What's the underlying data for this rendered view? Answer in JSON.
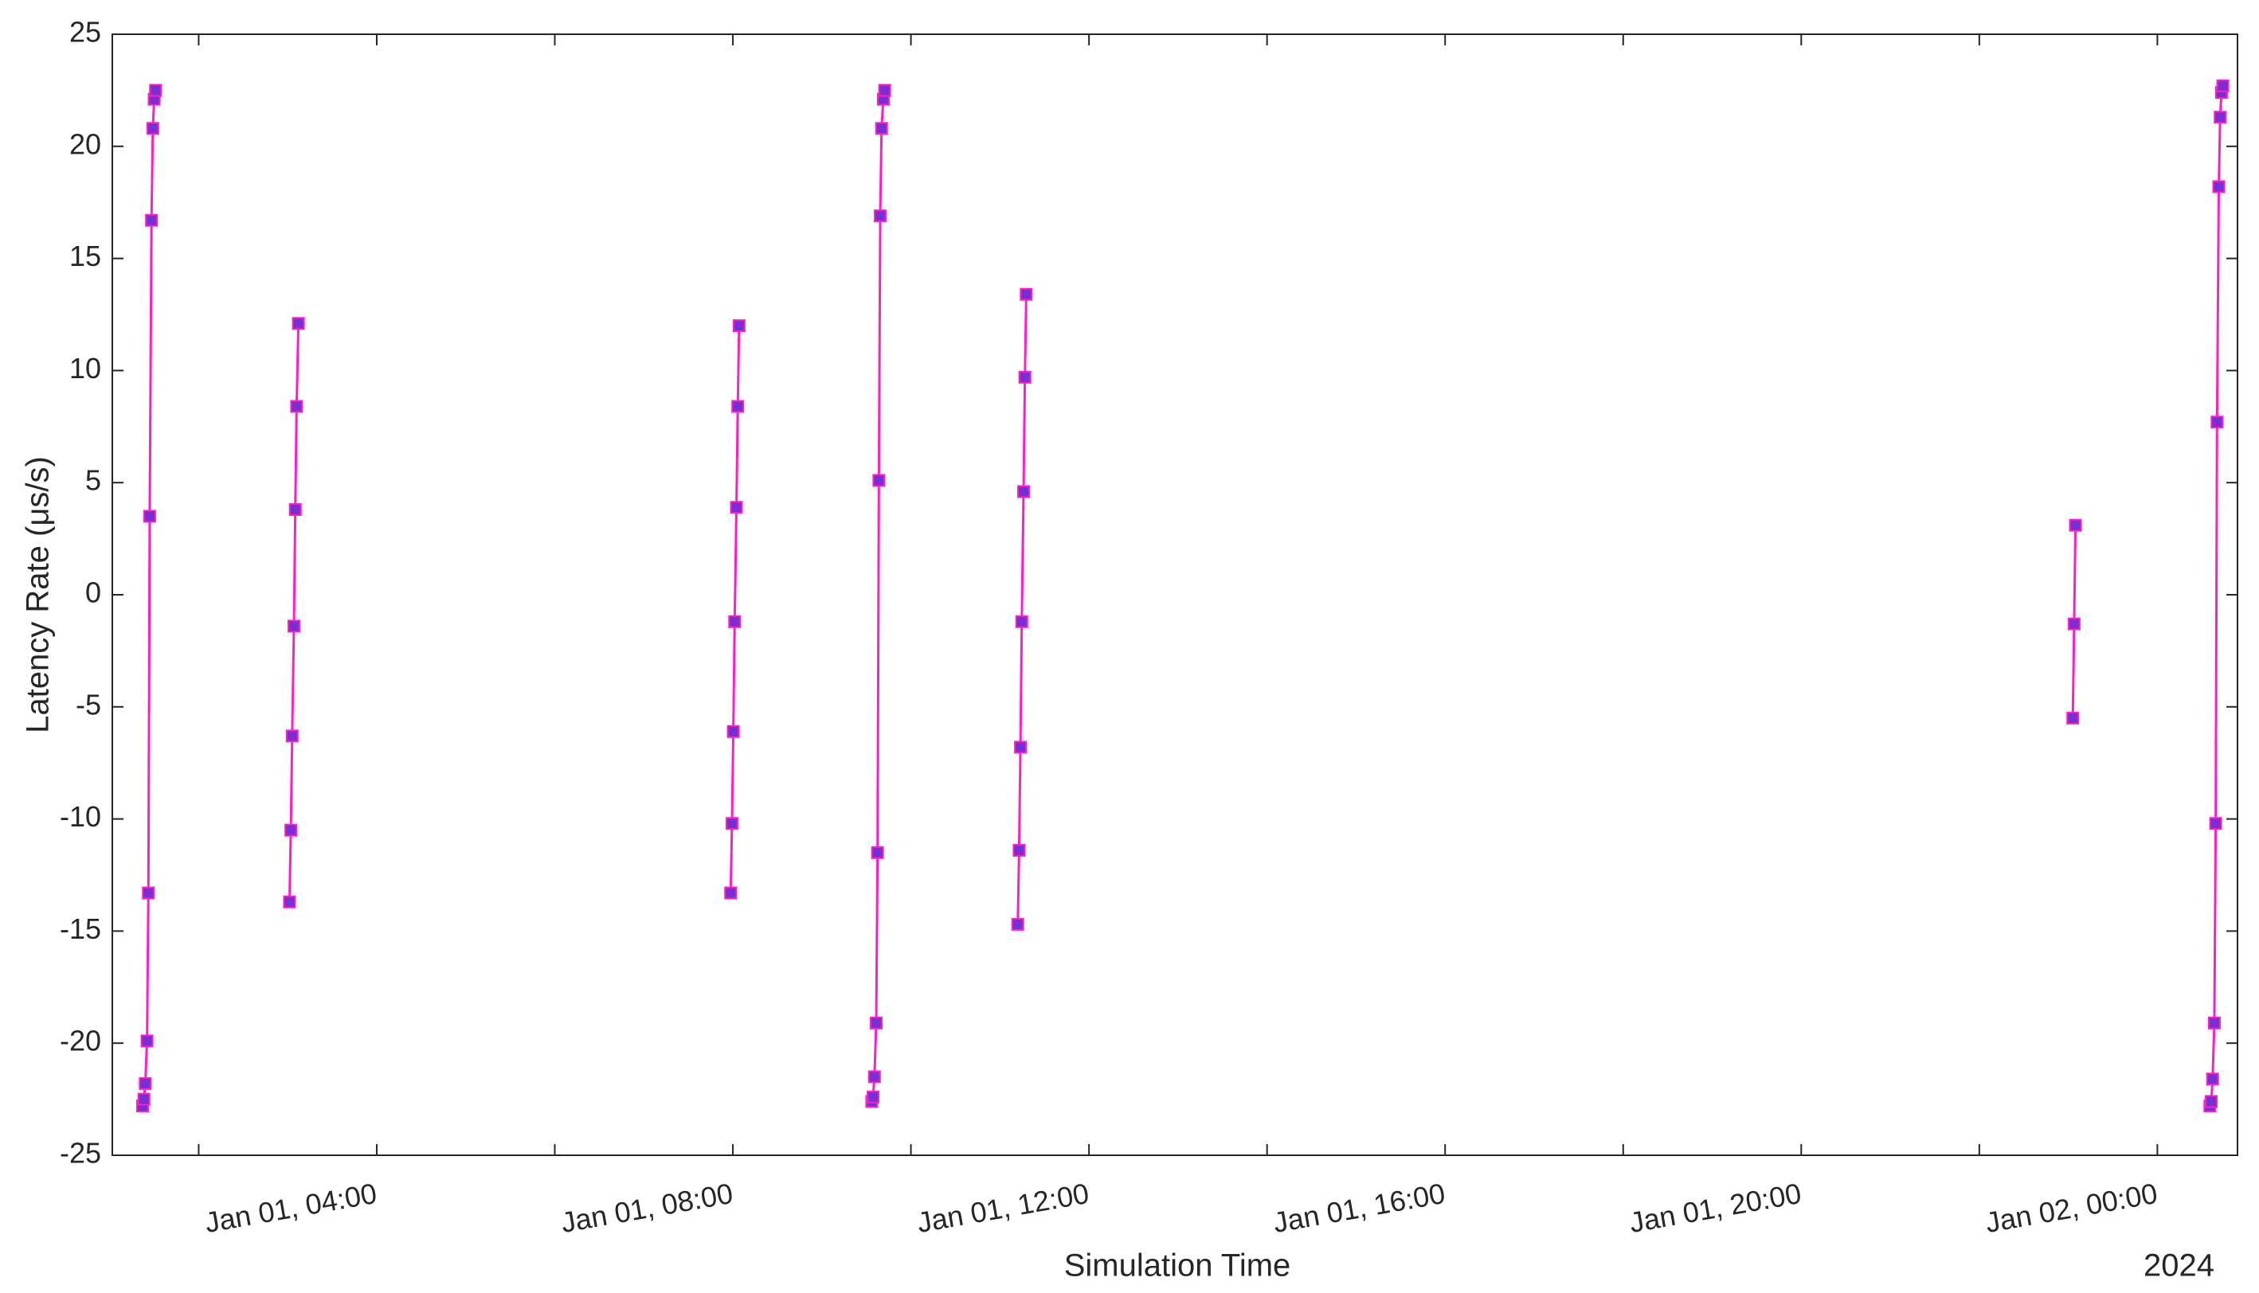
{
  "chart_data": {
    "type": "line",
    "xlabel": "Simulation Time",
    "ylabel": "Latency Rate (μs/s)",
    "x_secondary_label": "2024",
    "xlim": [
      1.03,
      24.9
    ],
    "xticks": [
      {
        "value": 4,
        "label": "Jan 01, 04:00"
      },
      {
        "value": 8,
        "label": "Jan 01, 08:00"
      },
      {
        "value": 12,
        "label": "Jan 01, 12:00"
      },
      {
        "value": 16,
        "label": "Jan 01, 16:00"
      },
      {
        "value": 20,
        "label": "Jan 01, 20:00"
      },
      {
        "value": 24,
        "label": "Jan 02, 00:00"
      }
    ],
    "xminorticks": [
      2,
      6,
      10,
      14,
      18,
      22
    ],
    "ylim": [
      -25,
      25
    ],
    "yticks": [
      -25,
      -20,
      -15,
      -10,
      -5,
      0,
      5,
      10,
      15,
      20,
      25
    ],
    "grid": false,
    "series": [
      {
        "color": "#ff1fc8",
        "marker_color": "#7a2ed0",
        "x": [
          1.37,
          1.385,
          1.4,
          1.42,
          1.435,
          1.45,
          1.47,
          1.485,
          1.5,
          1.515,
          null,
          3.02,
          3.035,
          3.05,
          3.07,
          3.085,
          3.1,
          3.12,
          null,
          7.975,
          7.99,
          8.005,
          8.02,
          8.04,
          8.055,
          8.07,
          null,
          9.56,
          9.575,
          9.59,
          9.61,
          9.625,
          9.64,
          9.655,
          9.67,
          9.69,
          9.705,
          null,
          11.2,
          11.215,
          11.23,
          11.245,
          11.265,
          11.28,
          11.295,
          null,
          23.05,
          23.065,
          23.08,
          null,
          24.59,
          24.605,
          24.62,
          24.64,
          24.655,
          24.67,
          24.69,
          24.705,
          24.72,
          24.735
        ],
        "values": [
          -22.8,
          -22.5,
          -21.8,
          -19.9,
          -13.3,
          3.5,
          16.7,
          20.8,
          22.1,
          22.5,
          null,
          -13.7,
          -10.5,
          -6.3,
          -1.4,
          3.8,
          8.4,
          12.1,
          null,
          -13.3,
          -10.2,
          -6.1,
          -1.2,
          3.9,
          8.4,
          12.0,
          null,
          -22.6,
          -22.4,
          -21.5,
          -19.1,
          -11.5,
          5.1,
          16.9,
          20.8,
          22.1,
          22.5,
          null,
          -14.7,
          -11.4,
          -6.8,
          -1.2,
          4.6,
          9.7,
          13.4,
          null,
          -5.5,
          -1.3,
          3.1,
          null,
          -22.8,
          -22.6,
          -21.6,
          -19.1,
          -10.2,
          7.7,
          18.2,
          21.3,
          22.4,
          22.7
        ]
      }
    ]
  }
}
